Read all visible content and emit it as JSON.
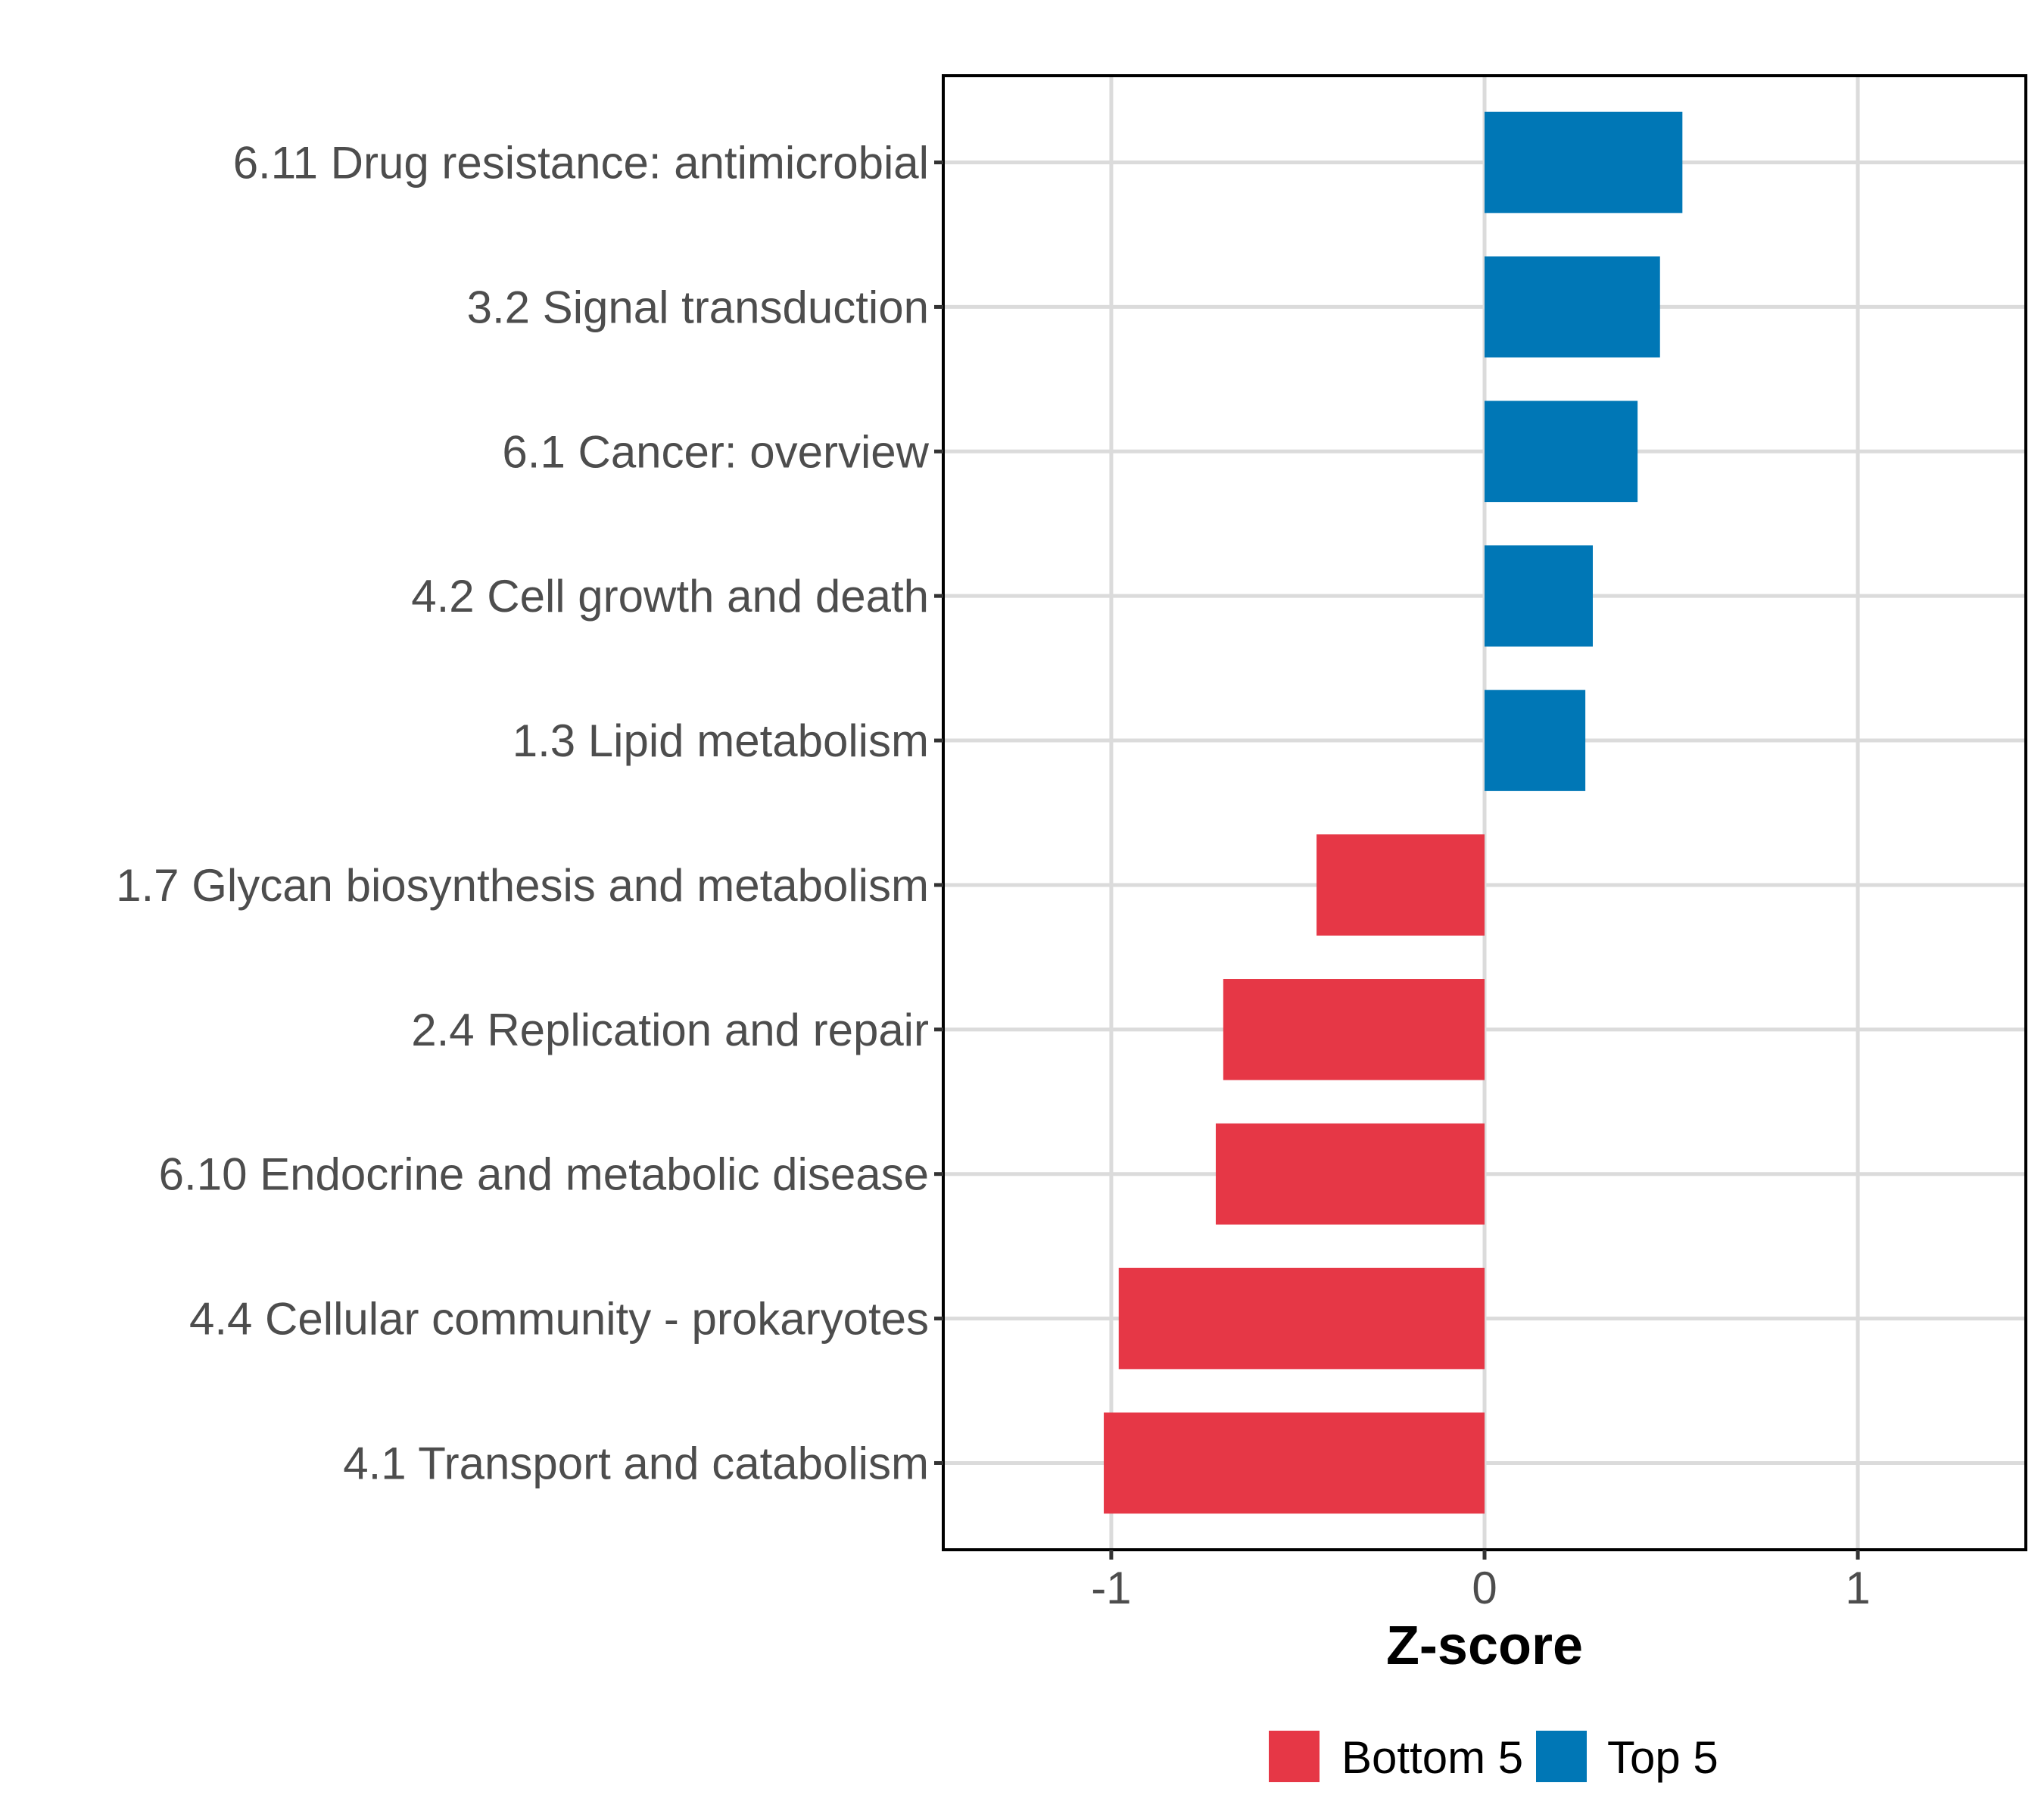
{
  "chart_data": {
    "type": "bar",
    "orientation": "horizontal",
    "title": "",
    "xlabel": "Z-score",
    "ylabel": "",
    "xlim": [
      -1.45,
      1.45
    ],
    "xticks": [
      -1,
      0,
      1
    ],
    "xtick_labels": [
      "-1",
      "0",
      "1"
    ],
    "grid": true,
    "legend_position": "bottom",
    "categories": [
      "6.11 Drug resistance: antimicrobial",
      "3.2 Signal transduction",
      "6.1 Cancer: overview",
      "4.2 Cell growth and death",
      "1.3 Lipid metabolism",
      "1.7 Glycan biosynthesis and metabolism",
      "2.4 Replication and repair",
      "6.10 Endocrine and metabolic disease",
      "4.4 Cellular community - prokaryotes",
      "4.1 Transport and catabolism"
    ],
    "values": [
      0.53,
      0.47,
      0.41,
      0.29,
      0.27,
      -0.45,
      -0.7,
      -0.72,
      -0.98,
      -1.02
    ],
    "groups": [
      "Top 5",
      "Top 5",
      "Top 5",
      "Top 5",
      "Top 5",
      "Bottom 5",
      "Bottom 5",
      "Bottom 5",
      "Bottom 5",
      "Bottom 5"
    ],
    "legend": [
      {
        "name": "Bottom 5",
        "color": "#e63746"
      },
      {
        "name": "Top 5",
        "color": "#0077b6"
      }
    ]
  }
}
